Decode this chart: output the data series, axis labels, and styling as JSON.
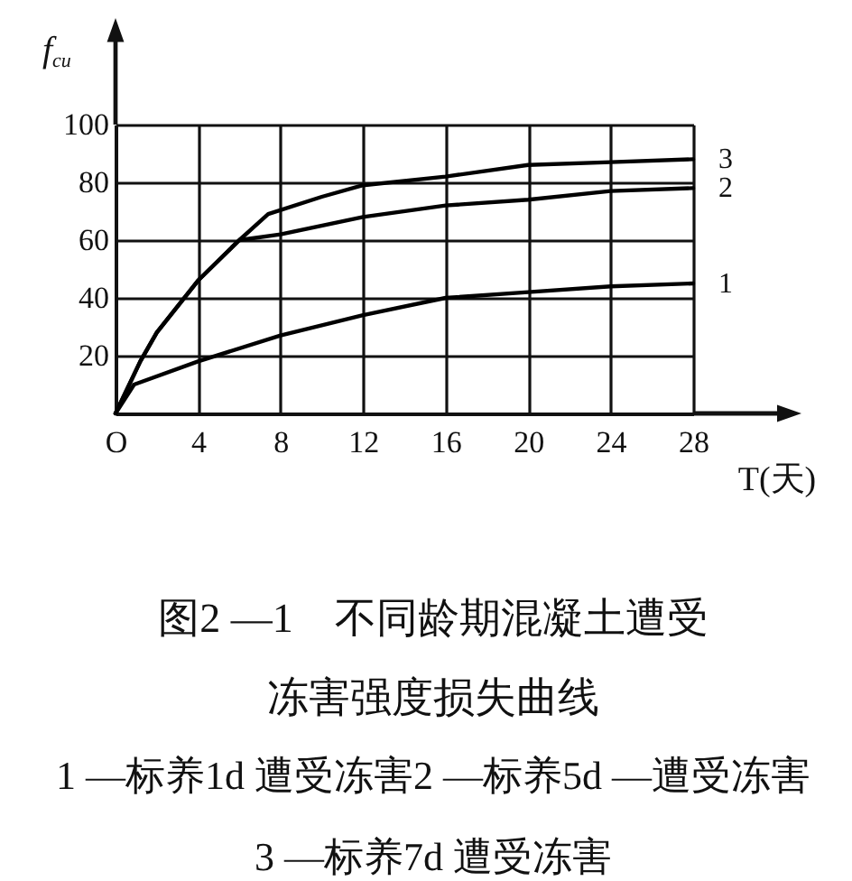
{
  "chart_data": {
    "type": "line",
    "title": "图2 —1　不同龄期混凝土遭受冻害强度损失曲线",
    "xlabel": "T(天)",
    "ylabel": "f$_{cu}$",
    "annotations": [
      "1 —标养1d 遭受冻害2 —标养5d —遭受冻害",
      "3 —标养7d 遭受冻害"
    ],
    "xlim": [
      0,
      28
    ],
    "ylim": [
      0,
      100
    ],
    "xticks": [
      {
        "value": 0,
        "label": "O"
      },
      4,
      8,
      12,
      16,
      20,
      24,
      28
    ],
    "yticks": [
      20,
      40,
      60,
      80,
      100
    ],
    "grid": true,
    "line_style": "solid",
    "series": [
      {
        "name": "1",
        "color": "#000000",
        "x": [
          0,
          0.9,
          4,
          8,
          12,
          16,
          20,
          24,
          28
        ],
        "values": [
          0,
          10,
          18,
          27,
          34,
          40,
          42,
          44,
          45
        ]
      },
      {
        "name": "2",
        "color": "#000000",
        "x": [
          0,
          1.2,
          2,
          4,
          6,
          8,
          12,
          16,
          20,
          24,
          28
        ],
        "values": [
          0,
          18,
          28,
          46,
          60,
          62,
          68,
          72,
          74,
          77,
          78
        ]
      },
      {
        "name": "3",
        "color": "#000000",
        "x": [
          0,
          1.2,
          2,
          4,
          6,
          7.4,
          10,
          12,
          16,
          20,
          24,
          28
        ],
        "values": [
          0,
          18,
          28,
          46,
          60,
          69,
          75,
          79,
          82,
          86,
          87,
          88
        ]
      }
    ]
  }
}
